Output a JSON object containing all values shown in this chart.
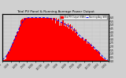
{
  "title": "Total PV Panel & Running Average Power Output",
  "bg_color": "#d0d0d0",
  "plot_bg_color": "#d0d0d0",
  "bar_color": "#FF0000",
  "avg_color": "#0000FF",
  "grid_color": "#aaaaaa",
  "ylim": [
    0,
    6.5
  ],
  "n_bars": 200,
  "legend_label_pv": "Total PV Output (kWh)",
  "legend_label_avg": "Running Avg (kW)",
  "legend_color_pv": "#FF0000",
  "legend_color_avg": "#0000FF"
}
